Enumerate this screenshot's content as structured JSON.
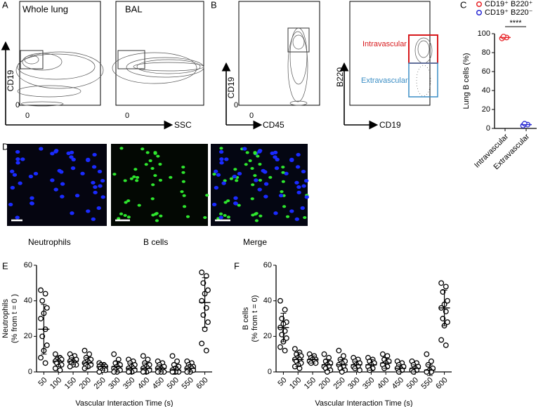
{
  "panel_labels": [
    "A",
    "B",
    "C",
    "D",
    "E",
    "F"
  ],
  "flow": {
    "whole_lung": "Whole lung",
    "bal": "BAL",
    "zero": "0",
    "a_y_axis": "CD19",
    "a_x_axis": "SSC",
    "b_y_axis": "CD19",
    "b_x_axis": "CD45",
    "b2_y_axis": "B220",
    "b2_x_axis": "CD19",
    "intravascular": "Intravascular",
    "extravascular": "Extravascular"
  },
  "images": {
    "labels": [
      "Neutrophils",
      "B cells",
      "Merge"
    ]
  },
  "chart_data": [
    {
      "type": "strip",
      "ylabel": [
        "Lung B cells (%)"
      ],
      "categories": [
        "Intravascular",
        "Extravascular"
      ],
      "ylim": [
        0,
        100
      ],
      "yticks": [
        0,
        20,
        40,
        60,
        80,
        100
      ],
      "legend": "top",
      "annotation": "****",
      "series": [
        {
          "name": "CD19⁺ B220⁺",
          "color": "#e8262a",
          "values": [
            [
              95,
              96,
              97
            ],
            null
          ],
          "mean": [
            96,
            null
          ],
          "sd": [
            null,
            null
          ]
        },
        {
          "name": "CD19⁺ B220⁻",
          "color": "#2b2bd4",
          "values": [
            null,
            [
              3,
              4,
              5
            ]
          ],
          "mean": [
            null,
            4
          ],
          "sd": [
            null,
            null
          ]
        }
      ]
    },
    {
      "type": "strip",
      "ylabel": [
        "Neutrophils",
        "(% from t = 0 )"
      ],
      "xlabel": "Vascular Interaction Time (s)",
      "categories": [
        50,
        100,
        150,
        200,
        250,
        300,
        350,
        400,
        450,
        500,
        550,
        600
      ],
      "ylim": [
        0,
        60
      ],
      "yticks": [
        0,
        20,
        40,
        60
      ],
      "series": [
        {
          "color": "#000000",
          "values": [
            [
              46,
              44,
              40,
              36,
              33,
              30,
              24,
              20,
              15,
              12,
              8,
              5
            ],
            [
              10,
              8,
              7,
              7,
              6,
              6,
              5,
              5,
              4,
              3,
              2,
              1
            ],
            [
              10,
              9,
              8,
              7,
              6,
              6,
              5,
              5,
              4,
              4,
              3
            ],
            [
              12,
              10,
              8,
              7,
              6,
              5,
              5,
              4,
              4,
              3,
              2
            ],
            [
              5,
              4,
              4,
              3,
              3,
              3,
              2,
              2,
              1,
              1,
              0
            ],
            [
              10,
              7,
              5,
              4,
              3,
              2,
              2,
              1,
              1,
              0,
              0
            ],
            [
              7,
              6,
              5,
              4,
              3,
              2,
              2,
              1,
              1,
              0,
              0
            ],
            [
              9,
              7,
              5,
              4,
              3,
              2,
              2,
              1,
              1,
              0,
              0
            ],
            [
              6,
              5,
              4,
              3,
              2,
              2,
              1,
              1,
              0,
              0,
              0
            ],
            [
              9,
              6,
              4,
              3,
              2,
              1,
              1,
              0,
              0,
              0,
              0
            ],
            [
              6,
              5,
              4,
              3,
              3,
              2,
              2,
              1,
              1,
              0,
              0
            ],
            [
              56,
              54,
              50,
              46,
              44,
              40,
              36,
              32,
              28,
              24,
              16,
              12
            ]
          ],
          "mean": [
            24,
            6,
            6,
            5,
            3,
            3,
            2,
            2,
            2,
            1,
            2,
            39
          ],
          "sd": [
            14,
            3,
            2,
            3,
            2,
            3,
            3,
            3,
            2,
            2,
            2,
            14
          ]
        }
      ]
    },
    {
      "type": "strip",
      "ylabel": [
        "B cells",
        "(% from t = 0)"
      ],
      "xlabel": "Vascular Interaction Time (s)",
      "categories": [
        50,
        100,
        150,
        200,
        250,
        300,
        350,
        400,
        450,
        500,
        550,
        600
      ],
      "ylim": [
        0,
        60
      ],
      "yticks": [
        0,
        20,
        40,
        60
      ],
      "series": [
        {
          "color": "#000000",
          "values": [
            [
              40,
              35,
              30,
              28,
              27,
              25,
              23,
              21,
              19,
              17,
              14,
              12
            ],
            [
              13,
              11,
              10,
              9,
              8,
              7,
              7,
              6,
              5,
              4,
              3,
              2
            ],
            [
              10,
              9,
              8,
              7,
              7,
              6,
              6,
              5,
              5
            ],
            [
              10,
              8,
              6,
              5,
              4,
              3,
              3,
              2,
              1,
              0
            ],
            [
              12,
              9,
              7,
              6,
              5,
              4,
              3,
              2,
              1,
              0
            ],
            [
              8,
              7,
              6,
              5,
              4,
              3,
              3,
              2,
              1
            ],
            [
              8,
              7,
              6,
              5,
              4,
              3,
              2,
              1
            ],
            [
              10,
              9,
              7,
              6,
              5,
              4,
              3,
              2
            ],
            [
              6,
              5,
              4,
              3,
              2,
              2,
              1,
              0
            ],
            [
              6,
              5,
              4,
              3,
              2,
              1,
              1,
              0
            ],
            [
              10,
              6,
              4,
              2,
              1,
              0,
              0
            ],
            [
              50,
              48,
              45,
              40,
              38,
              36,
              34,
              30,
              28,
              26,
              18,
              15
            ]
          ],
          "mean": [
            25,
            7,
            7,
            4,
            4,
            4,
            4,
            5,
            2,
            2,
            1,
            36
          ],
          "sd": [
            8,
            4,
            2,
            3,
            3,
            2,
            3,
            3,
            2,
            2,
            3,
            10
          ]
        }
      ]
    }
  ]
}
